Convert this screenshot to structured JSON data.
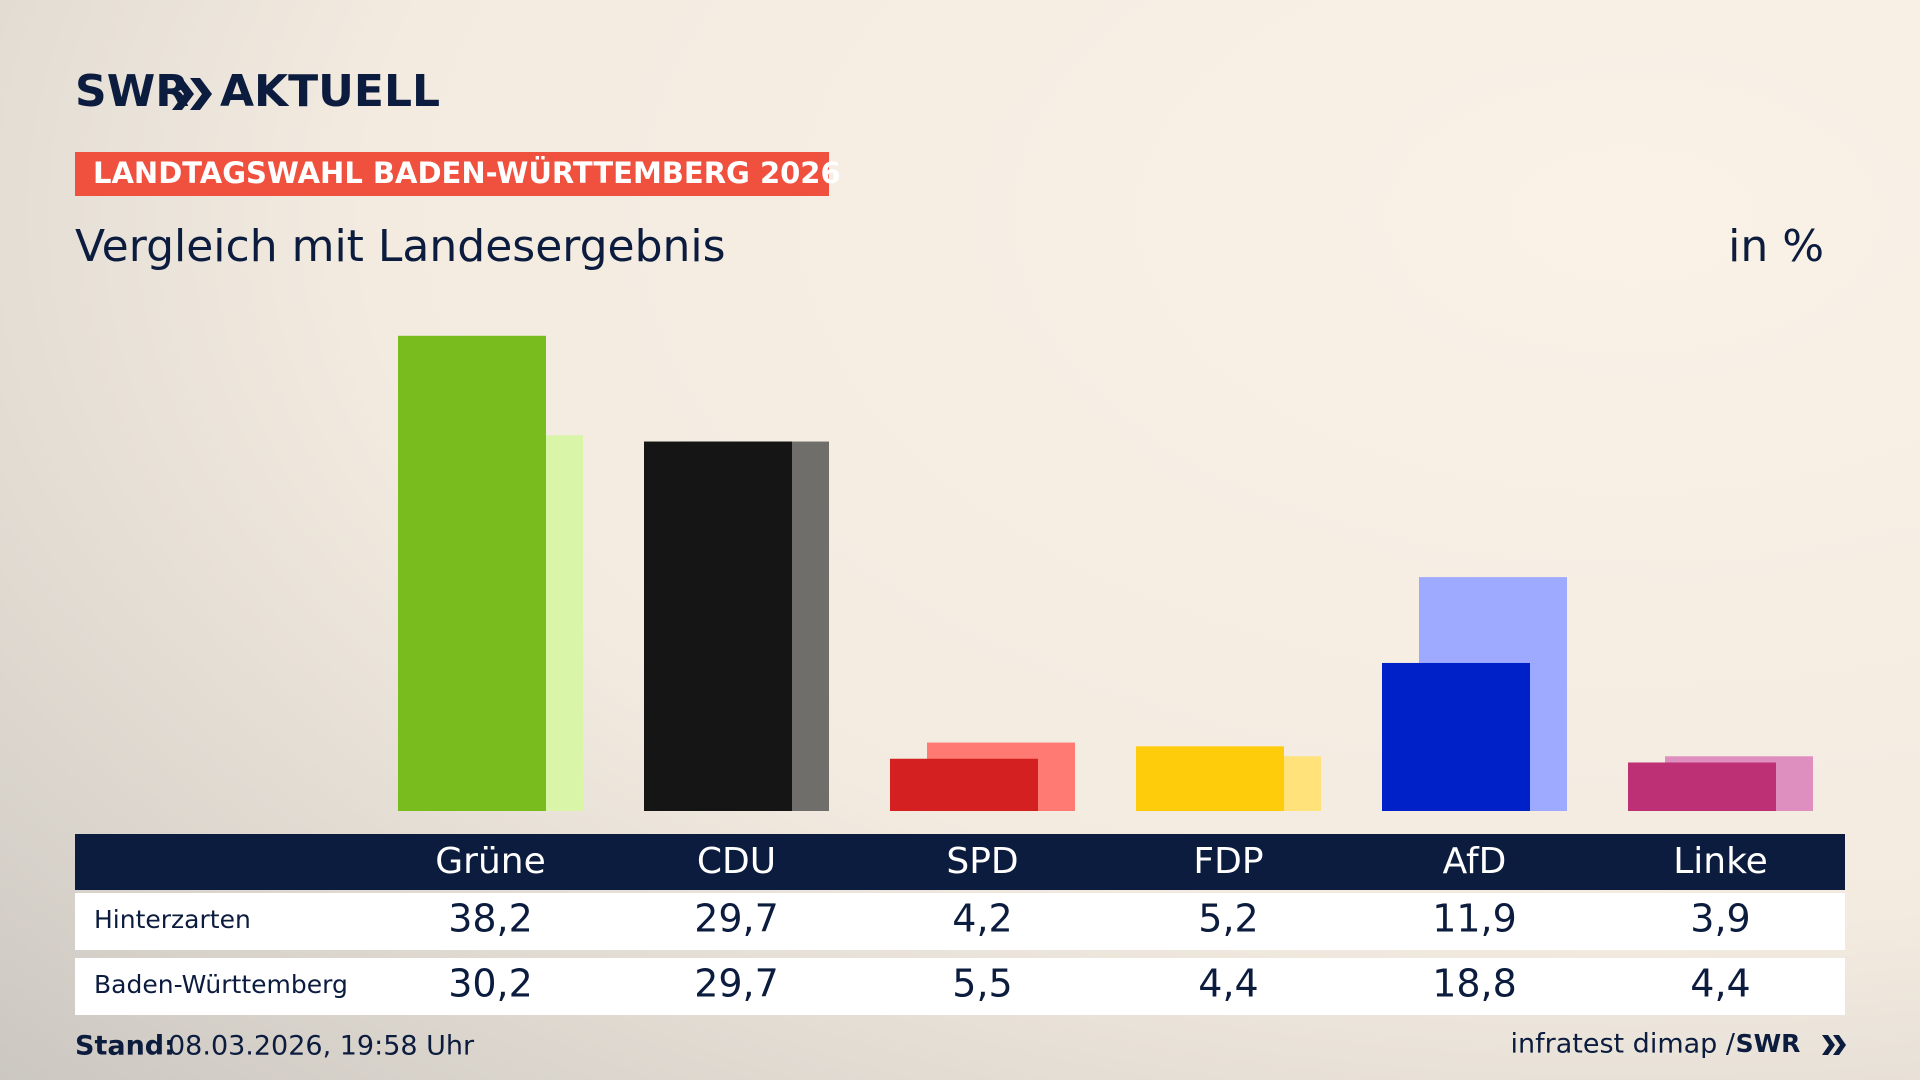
{
  "brand": {
    "logo": "SWR",
    "product": "AKTUELL"
  },
  "chart_data": {
    "type": "bar",
    "kicker": "LANDTAGSWAHL BADEN-WÜRTTEMBERG 2026",
    "title": "Vergleich mit Landesergebnis",
    "unit": "in %",
    "categories": [
      "Grüne",
      "CDU",
      "SPD",
      "FDP",
      "AfD",
      "Linke"
    ],
    "series": [
      {
        "name": "Hinterzarten",
        "values": [
          38.2,
          29.7,
          4.2,
          5.2,
          11.9,
          3.9
        ],
        "value_labels": [
          "38,2",
          "29,7",
          "4,2",
          "5,2",
          "11,9",
          "3,9"
        ],
        "colors": [
          "#78bc1e",
          "#151515",
          "#d42020",
          "#ffcc0c",
          "#0021c8",
          "#bd3075"
        ]
      },
      {
        "name": "Baden-Württemberg",
        "values": [
          30.2,
          29.7,
          5.5,
          4.4,
          18.8,
          4.4
        ],
        "value_labels": [
          "30,2",
          "29,7",
          "5,5",
          "4,4",
          "18,8",
          "4,4"
        ],
        "colors": [
          "#d8f5a8",
          "#706e6b",
          "#ff7a72",
          "#ffe27a",
          "#9eaaff",
          "#de8fbf"
        ]
      }
    ]
  },
  "footer": {
    "stand_label": "Stand:",
    "stand": "08.03.2026, 19:58 Uhr",
    "source": "infratest dimap /",
    "source_logo": "SWR"
  }
}
